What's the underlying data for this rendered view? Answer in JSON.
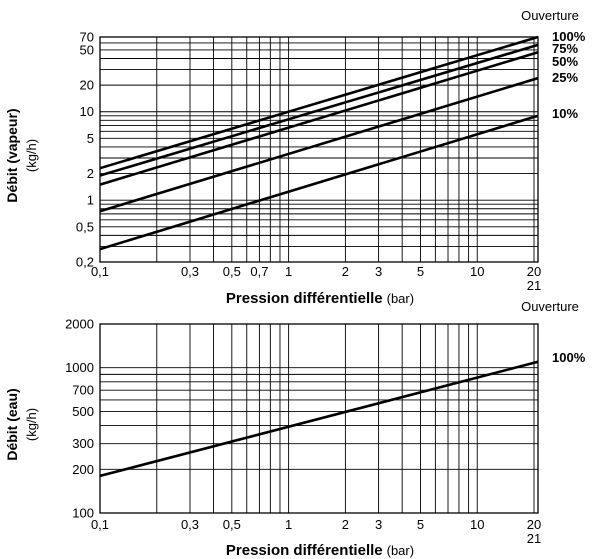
{
  "chart_data": [
    {
      "type": "line",
      "x_scale": "log",
      "y_scale": "log",
      "xlim": [
        0.1,
        21
      ],
      "ylim": [
        0.2,
        70
      ],
      "grid": true,
      "xlabel_bold": "Pression différentielle",
      "xlabel_unit": "(bar)",
      "ylabel_bold": "Débit (vapeur)",
      "ylabel_unit": "(kg/h)",
      "series_header": "Ouverture",
      "x_ticks": [
        "0,1",
        "0,3",
        "0,5",
        "0,7",
        "1",
        "2",
        "3",
        "5",
        "10",
        "20"
      ],
      "x_end_label": "21",
      "y_ticks": [
        "0,2",
        "0,5",
        "1",
        "2",
        "5",
        "10",
        "20",
        "50",
        "70"
      ],
      "series": [
        {
          "name": "100%",
          "x": [
            0.1,
            21
          ],
          "y": [
            2.3,
            70
          ]
        },
        {
          "name": "75%",
          "x": [
            0.1,
            21
          ],
          "y": [
            1.9,
            57
          ]
        },
        {
          "name": "50%",
          "x": [
            0.1,
            21
          ],
          "y": [
            1.5,
            47
          ]
        },
        {
          "name": "25%",
          "x": [
            0.1,
            21
          ],
          "y": [
            0.75,
            24
          ]
        },
        {
          "name": "10%",
          "x": [
            0.1,
            21
          ],
          "y": [
            0.28,
            9
          ]
        }
      ]
    },
    {
      "type": "line",
      "x_scale": "log",
      "y_scale": "log",
      "xlim": [
        0.1,
        21
      ],
      "ylim": [
        100,
        2000
      ],
      "grid": true,
      "xlabel_bold": "Pression différentielle",
      "xlabel_unit": "(bar)",
      "ylabel_bold": "Débit (eau)",
      "ylabel_unit": "(kg/h)",
      "series_header": "Ouverture",
      "x_ticks": [
        "0,1",
        "0,3",
        "0,5",
        "1",
        "2",
        "3",
        "5",
        "10",
        "20"
      ],
      "x_end_label": "21",
      "y_ticks": [
        "100",
        "200",
        "300",
        "500",
        "700",
        "1000",
        "2000"
      ],
      "series": [
        {
          "name": "100%",
          "x": [
            0.1,
            21
          ],
          "y": [
            180,
            1100
          ]
        }
      ]
    }
  ]
}
